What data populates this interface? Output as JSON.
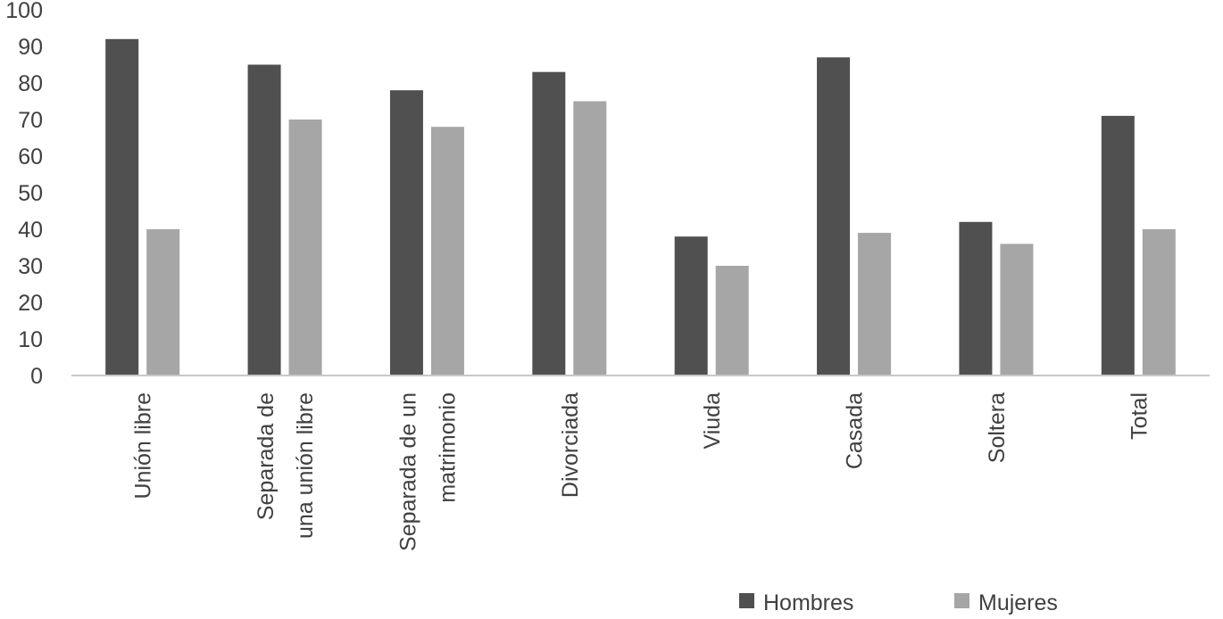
{
  "chart_data": {
    "type": "bar",
    "title": "",
    "xlabel": "",
    "ylabel": "",
    "ylim": [
      0,
      100
    ],
    "yticks": [
      0,
      10,
      20,
      30,
      40,
      50,
      60,
      70,
      80,
      90,
      100
    ],
    "grid": false,
    "legend_position": "bottom-right",
    "categories": [
      [
        "Unión libre"
      ],
      [
        "Separada de",
        "una unión libre"
      ],
      [
        "Separada de un",
        "matrimonio"
      ],
      [
        "Divorciada"
      ],
      [
        "Viuda"
      ],
      [
        "Casada"
      ],
      [
        "Soltera"
      ],
      [
        "Total"
      ]
    ],
    "series": [
      {
        "name": "Hombres",
        "color": "#505050",
        "values": [
          92,
          85,
          78,
          83,
          38,
          87,
          42,
          71
        ]
      },
      {
        "name": "Mujeres",
        "color": "#a6a6a6",
        "values": [
          40,
          70,
          68,
          75,
          30,
          39,
          36,
          40
        ]
      }
    ],
    "colors": {
      "axis": "#c8c8c8",
      "text": "#404040"
    }
  }
}
